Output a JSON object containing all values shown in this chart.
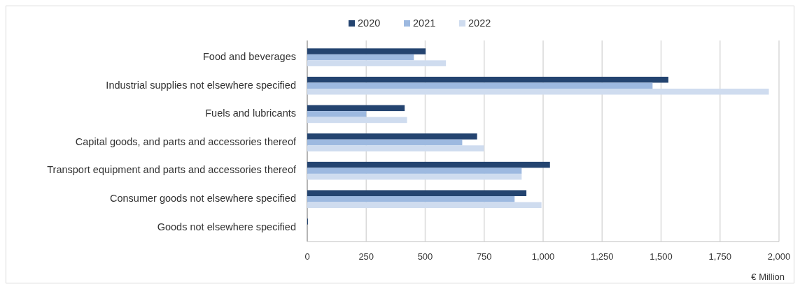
{
  "chart_data": {
    "type": "bar",
    "orientation": "horizontal",
    "categories": [
      "Food and beverages",
      "Industrial supplies not elsewhere specified",
      "Fuels and lubricants",
      "Capital goods, and parts and accessories thereof",
      "Transport equipment and parts and accessories thereof",
      "Consumer goods not elsewhere specified",
      "Goods not elsewhere specified"
    ],
    "series": [
      {
        "name": "2020",
        "color": "#244470",
        "values": [
          502,
          1531,
          413,
          720,
          1029,
          929,
          3
        ]
      },
      {
        "name": "2021",
        "color": "#9db9e0",
        "values": [
          452,
          1464,
          250,
          657,
          909,
          879,
          null
        ]
      },
      {
        "name": "2022",
        "color": "#cfdcef",
        "values": [
          588,
          1957,
          423,
          749,
          909,
          993,
          null
        ]
      }
    ],
    "xlim": [
      0,
      2000
    ],
    "xticks": [
      0,
      250,
      500,
      750,
      {
        "value": 1000,
        "label": "1,000"
      },
      {
        "value": 1250,
        "label": "1,250"
      },
      {
        "value": 1500,
        "label": "1,500"
      },
      {
        "value": 1750,
        "label": "1,750"
      },
      {
        "value": 2000,
        "label": "2,000"
      }
    ],
    "xlabel": "€ Million",
    "grid": "x",
    "legend": "top"
  }
}
